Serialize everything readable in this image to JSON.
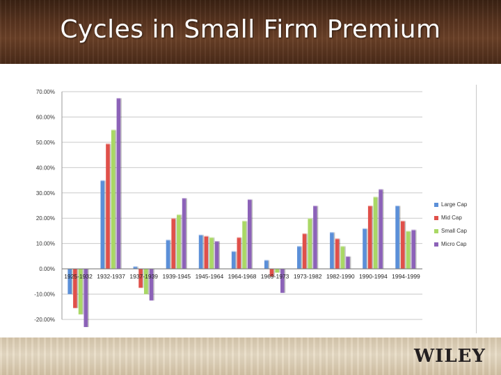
{
  "slide": {
    "title": "Cycles in Small Firm Premium",
    "logo": "WILEY"
  },
  "chart_data": {
    "type": "bar",
    "categories": [
      "1925-1932",
      "1932-1937",
      "1937-1939",
      "1939-1945",
      "1945-1964",
      "1964-1968",
      "1969-1973",
      "1973-1982",
      "1982-1990",
      "1990-1994",
      "1994-1999"
    ],
    "series": [
      {
        "name": "Large Cap",
        "color": "#5b8fd8",
        "values": [
          -10,
          35,
          1,
          11.5,
          13.5,
          7,
          3.5,
          9,
          14.5,
          16,
          25
        ]
      },
      {
        "name": "Mid Cap",
        "color": "#e0504a",
        "values": [
          -15.5,
          49.5,
          -7.5,
          20,
          13,
          12.5,
          -3,
          14,
          12,
          25,
          19
        ]
      },
      {
        "name": "Small Cap",
        "color": "#a9d865",
        "values": [
          -18,
          55,
          -10,
          21.5,
          12.5,
          19,
          -1.5,
          20,
          9,
          28.5,
          15
        ]
      },
      {
        "name": "Micro Cap",
        "color": "#8c62b8",
        "values": [
          -23,
          67.5,
          -12.5,
          28,
          11,
          27.5,
          -9.5,
          25,
          5,
          31.5,
          15.5
        ]
      }
    ],
    "ylim": [
      -20,
      70
    ],
    "yticks": [
      "70.00%",
      "60.00%",
      "50.00%",
      "40.00%",
      "30.00%",
      "20.00%",
      "10.00%",
      "0.00%",
      "-10.00%",
      "-20.00%"
    ],
    "grid": true,
    "legend_position": "right"
  }
}
